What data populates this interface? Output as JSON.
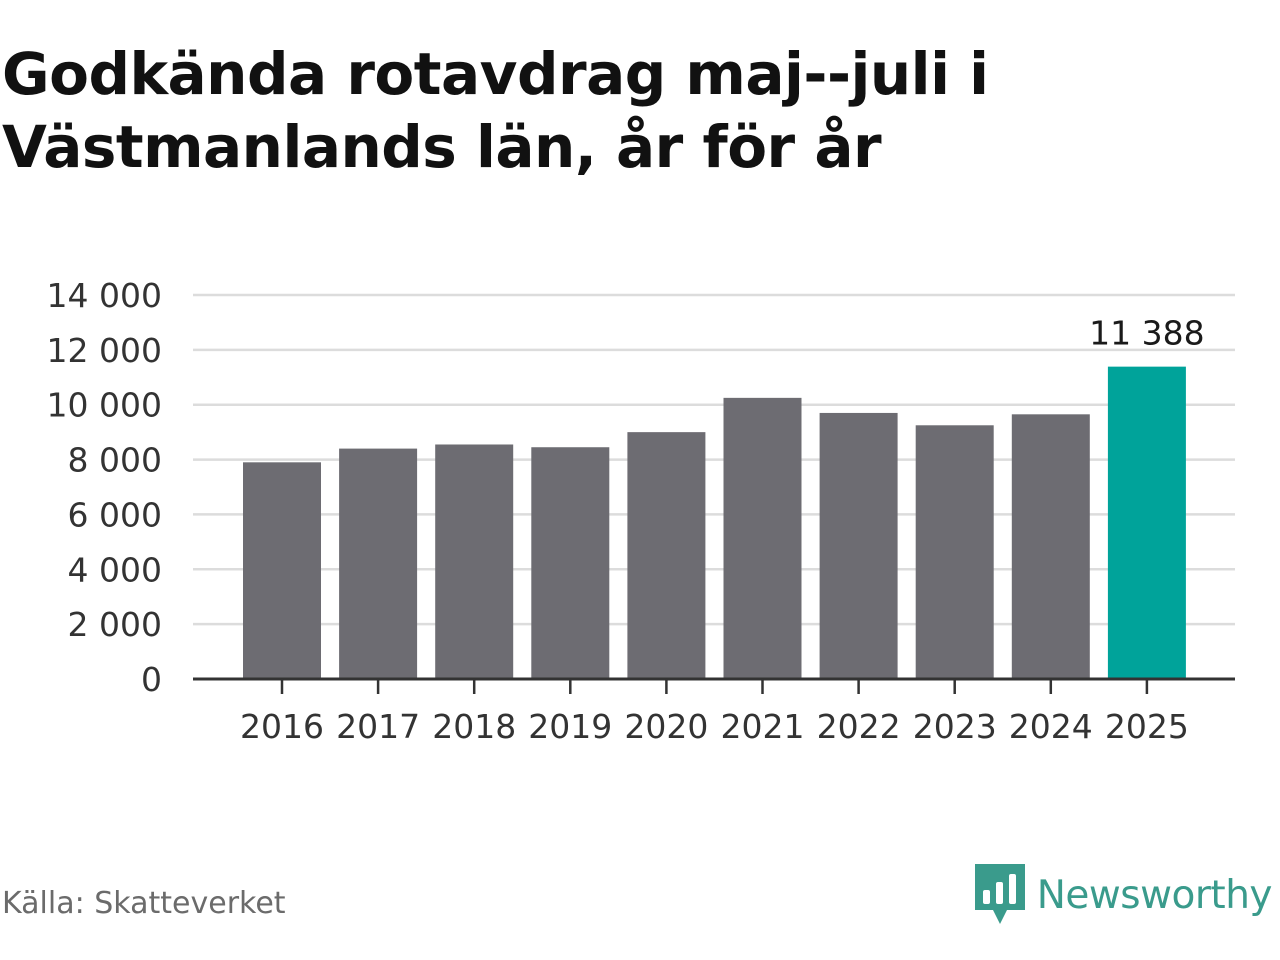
{
  "title": "Godkända rotavdrag maj--juli i Västmanlands län, år för år",
  "source": "Källa: Skatteverket",
  "brand": {
    "name": "Newsworthy",
    "logo_icon": "bar-chart-speech-bubble-icon",
    "color": "#3a9b8c"
  },
  "colors": {
    "bar": "#6d6c72",
    "highlight": "#00a39a",
    "grid": "#dcdcdc",
    "axis": "#333333"
  },
  "chart_data": {
    "type": "bar",
    "title": "Godkända rotavdrag maj--juli i Västmanlands län, år för år",
    "xlabel": "",
    "ylabel": "",
    "categories": [
      "2016",
      "2017",
      "2018",
      "2019",
      "2020",
      "2021",
      "2022",
      "2023",
      "2024",
      "2025"
    ],
    "values": [
      7900,
      8400,
      8550,
      8450,
      9000,
      10250,
      9700,
      9250,
      9650,
      11388
    ],
    "ylim": [
      0,
      14000
    ],
    "yticks": [
      0,
      2000,
      4000,
      6000,
      8000,
      10000,
      12000,
      14000
    ],
    "ytick_labels": [
      "0",
      "2 000",
      "4 000",
      "6 000",
      "8 000",
      "10 000",
      "12 000",
      "14 000"
    ],
    "highlight_category": "2025",
    "data_labels": [
      {
        "category": "2025",
        "text": "11 388"
      }
    ],
    "grid": true,
    "legend": "none"
  }
}
